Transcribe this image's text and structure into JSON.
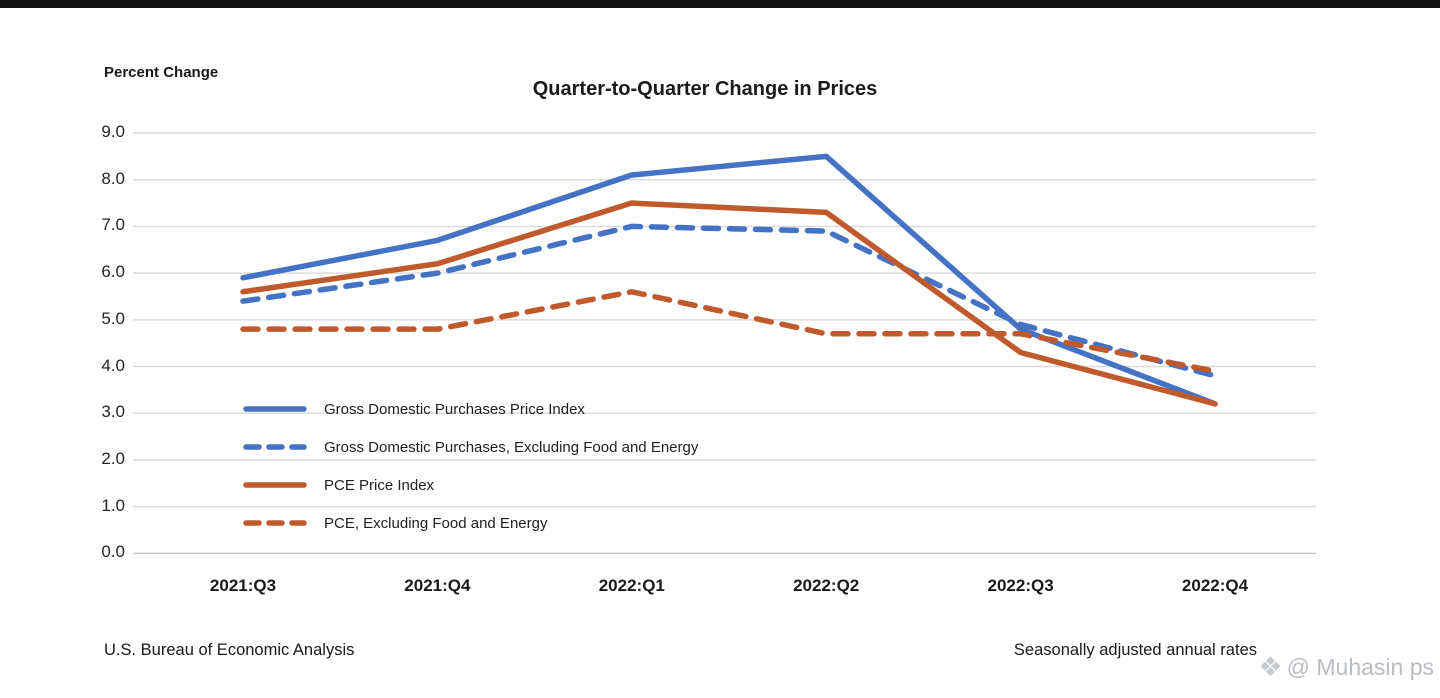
{
  "page": {
    "title": "Quarter-to-Quarter Change in Prices",
    "y_axis_label": "Percent Change",
    "footer_left": "U.S. Bureau of Economic Analysis",
    "footer_right": "Seasonally adjusted annual rates",
    "watermark": "@ Muhasin ps",
    "watermark_icon": "diamond-cluster-icon"
  },
  "colors": {
    "blue": "#4472C4",
    "orange": "#C05A2D",
    "grid": "#d9d9d9",
    "baseline": "#c9c9c9",
    "watermark": "#b9bcc0",
    "top_bar": "#141414"
  },
  "chart_data": {
    "type": "line",
    "title": "Quarter-to-Quarter Change in Prices",
    "xlabel": "",
    "ylabel": "Percent Change",
    "ylim": [
      0.0,
      9.0
    ],
    "y_tick_step": 1.0,
    "y_ticks": [
      "9.0",
      "8.0",
      "7.0",
      "6.0",
      "5.0",
      "4.0",
      "3.0",
      "2.0",
      "1.0",
      "0.0"
    ],
    "grid": true,
    "legend_position": "inside-lower-left",
    "categories": [
      "2021:Q3",
      "2021:Q4",
      "2022:Q1",
      "2022:Q2",
      "2022:Q3",
      "2022:Q4"
    ],
    "series": [
      {
        "name": "Gross Domestic Purchases Price Index",
        "style": "solid",
        "color": "#4472C4",
        "values": [
          5.9,
          6.7,
          8.1,
          8.5,
          4.8,
          3.2
        ]
      },
      {
        "name": "Gross Domestic Purchases, Excluding Food and Energy",
        "style": "dashed",
        "color": "#4472C4",
        "values": [
          5.4,
          6.0,
          7.0,
          6.9,
          4.9,
          3.8
        ]
      },
      {
        "name": "PCE Price Index",
        "style": "solid",
        "color": "#C05A2D",
        "values": [
          5.6,
          6.2,
          7.5,
          7.3,
          4.3,
          3.2
        ]
      },
      {
        "name": "PCE, Excluding Food and Energy",
        "style": "dashed",
        "color": "#C05A2D",
        "values": [
          4.8,
          4.8,
          5.6,
          4.7,
          4.7,
          3.9
        ]
      }
    ],
    "footnote_left": "U.S. Bureau of Economic Analysis",
    "footnote_right": "Seasonally adjusted annual rates"
  }
}
